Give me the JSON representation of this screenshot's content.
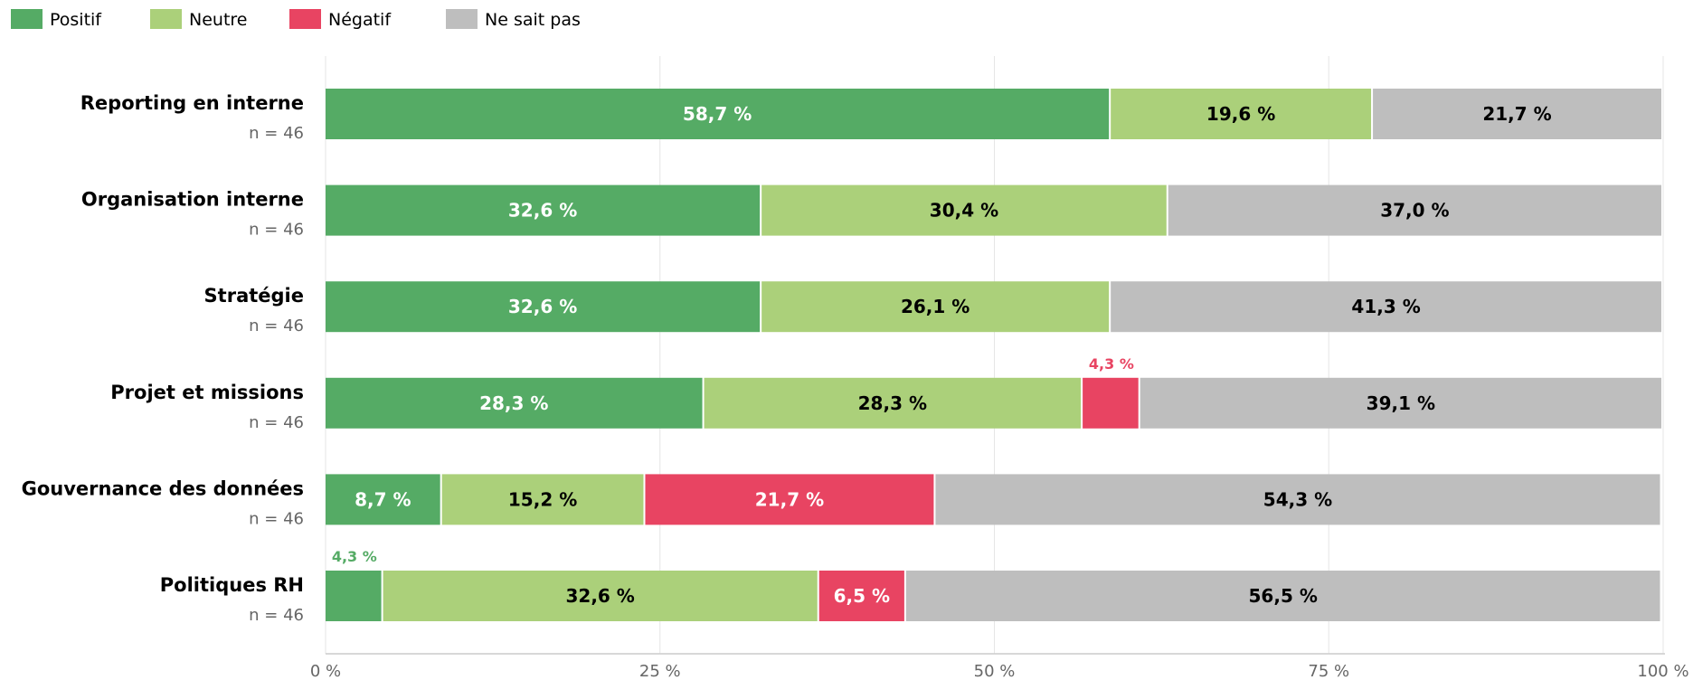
{
  "chart_data": {
    "type": "bar",
    "orientation": "horizontal",
    "stacked": true,
    "xlim": [
      0,
      100
    ],
    "x_ticks": [
      0,
      25,
      50,
      75,
      100
    ],
    "x_tick_labels": [
      "0 %",
      "25 %",
      "50 %",
      "75 %",
      "100 %"
    ],
    "grid": true,
    "legend_position": "top-left",
    "categories": [
      "Reporting en interne",
      "Organisation interne",
      "Stratégie",
      "Projet et missions",
      "Gouvernance des données",
      "Politiques RH"
    ],
    "counts": [
      "n = 46",
      "n = 46",
      "n = 46",
      "n = 46",
      "n = 46",
      "n = 46"
    ],
    "series": [
      {
        "name": "Positif",
        "color": "#55ab65",
        "values": [
          58.7,
          32.6,
          32.6,
          28.3,
          8.7,
          4.3
        ],
        "labels": [
          "58,7 %",
          "32,6 %",
          "32,6 %",
          "28,3 %",
          "8,7 %",
          "4,3 %"
        ]
      },
      {
        "name": "Neutre",
        "color": "#abd07a",
        "values": [
          19.6,
          30.4,
          26.1,
          28.3,
          15.2,
          32.6
        ],
        "labels": [
          "19,6 %",
          "30,4 %",
          "26,1 %",
          "28,3 %",
          "15,2 %",
          "32,6 %"
        ]
      },
      {
        "name": "Négatif",
        "color": "#e84462",
        "values": [
          0,
          0,
          0,
          4.3,
          21.7,
          6.5
        ],
        "labels": [
          "",
          "",
          "",
          "4,3 %",
          "21,7 %",
          "6,5 %"
        ]
      },
      {
        "name": "Ne sait pas",
        "color": "#bebebe",
        "values": [
          21.7,
          37.0,
          41.3,
          39.1,
          54.3,
          56.5
        ],
        "labels": [
          "21,7 %",
          "37,0 %",
          "41,3 %",
          "39,1 %",
          "54,3 %",
          "56,5 %"
        ]
      }
    ],
    "label_text_colors": [
      "#ffffff",
      "#000000",
      "#ffffff",
      "#000000"
    ]
  }
}
